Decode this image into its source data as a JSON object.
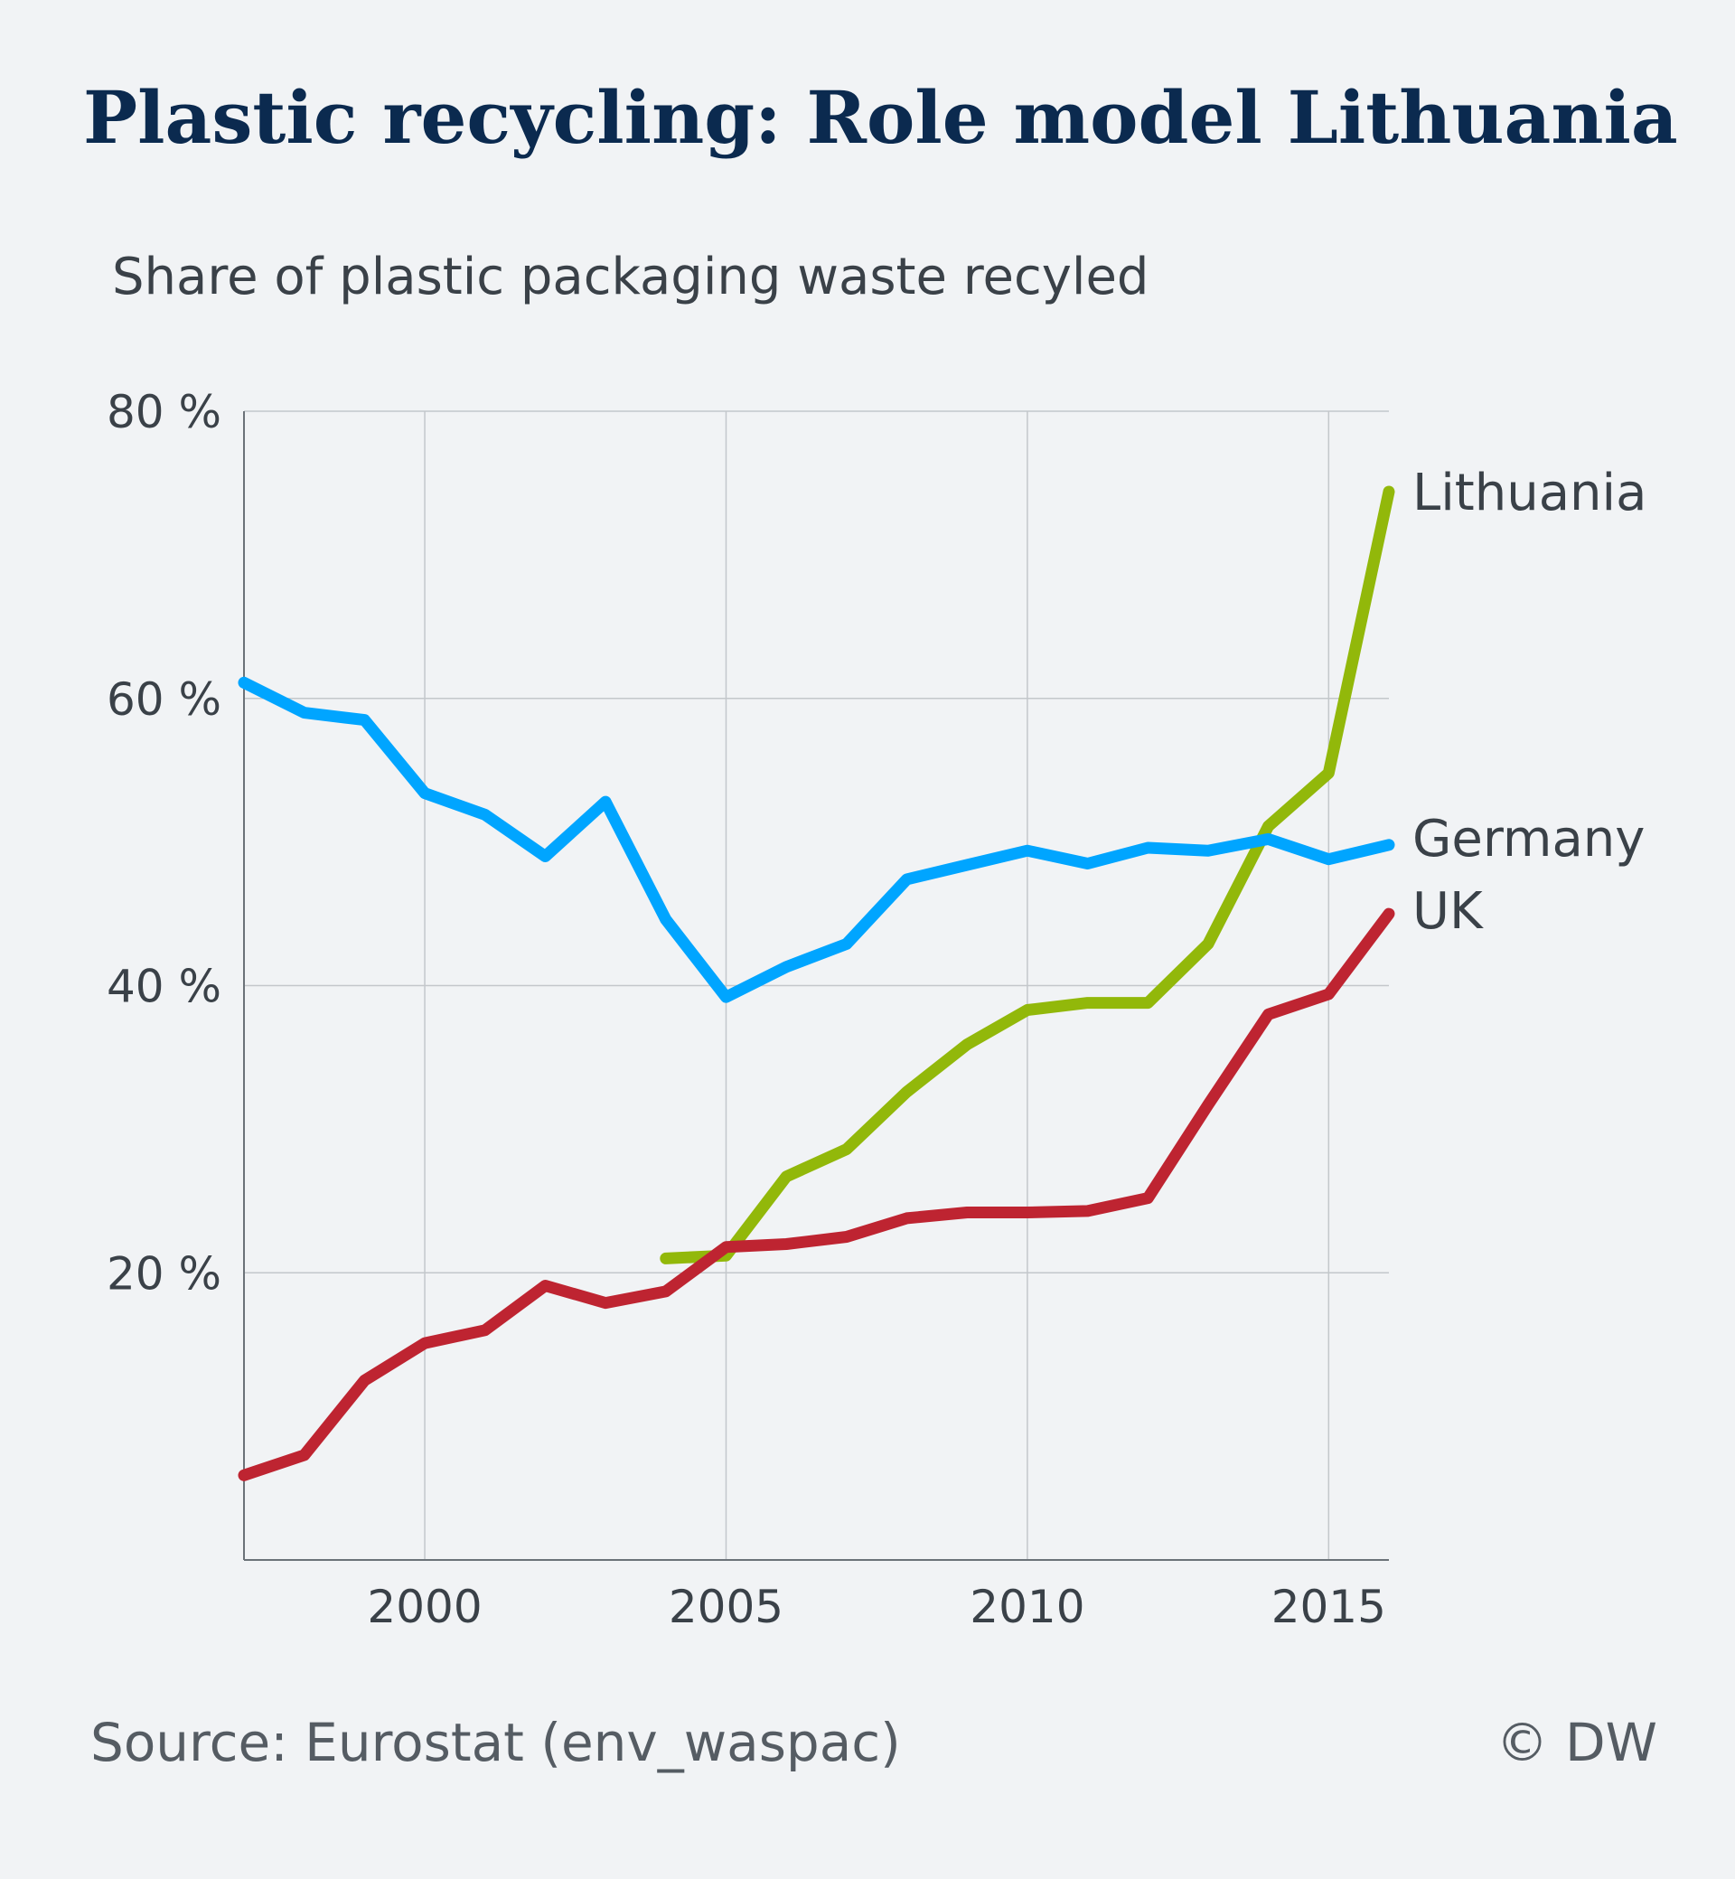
{
  "title": "Plastic recycling: Role model Lithuania",
  "subtitle": "Share of plastic packaging waste recyled",
  "source": "Source: Eurostat (env_waspac)",
  "credit": "© DW",
  "chart_data": {
    "type": "line",
    "xlim": [
      1997,
      2016
    ],
    "ylim": [
      0,
      80
    ],
    "x_ticks": [
      2000,
      2005,
      2010,
      2015
    ],
    "x_tick_labels": [
      "2000",
      "2005",
      "2010",
      "2015"
    ],
    "y_ticks": [
      20,
      40,
      60,
      80
    ],
    "y_tick_labels": [
      "20 %",
      "40 %",
      "60 %",
      "80 %"
    ],
    "grid": true,
    "legend": "direct labels at line ends (right)",
    "series": [
      {
        "name": "Lithuania",
        "color": "#92b80a",
        "x": [
          2004,
          2005,
          2006,
          2007,
          2008,
          2009,
          2010,
          2011,
          2012,
          2013,
          2014,
          2015,
          2016
        ],
        "values": [
          21.0,
          21.2,
          26.7,
          28.6,
          32.6,
          35.9,
          38.3,
          38.8,
          38.8,
          42.9,
          51.1,
          54.8,
          74.4
        ]
      },
      {
        "name": "Germany",
        "color": "#00a5ff",
        "x": [
          1997,
          1998,
          1999,
          2000,
          2001,
          2002,
          2003,
          2004,
          2005,
          2006,
          2007,
          2008,
          2009,
          2010,
          2011,
          2012,
          2013,
          2014,
          2015,
          2016
        ],
        "values": [
          61.1,
          59.0,
          58.5,
          53.4,
          51.9,
          49.0,
          52.8,
          44.6,
          39.2,
          41.3,
          42.9,
          47.4,
          48.4,
          49.4,
          48.5,
          49.6,
          49.4,
          50.2,
          48.8,
          49.8
        ]
      },
      {
        "name": "UK",
        "color": "#be2431",
        "x": [
          1997,
          1998,
          1999,
          2000,
          2001,
          2002,
          2003,
          2004,
          2005,
          2006,
          2007,
          2008,
          2009,
          2010,
          2011,
          2012,
          2013,
          2014,
          2015,
          2016
        ],
        "values": [
          5.9,
          7.3,
          12.5,
          15.1,
          16.0,
          19.1,
          17.9,
          18.7,
          21.8,
          22.0,
          22.5,
          23.8,
          24.2,
          24.2,
          24.3,
          25.2,
          31.7,
          38.0,
          39.4,
          45.0
        ]
      }
    ]
  }
}
